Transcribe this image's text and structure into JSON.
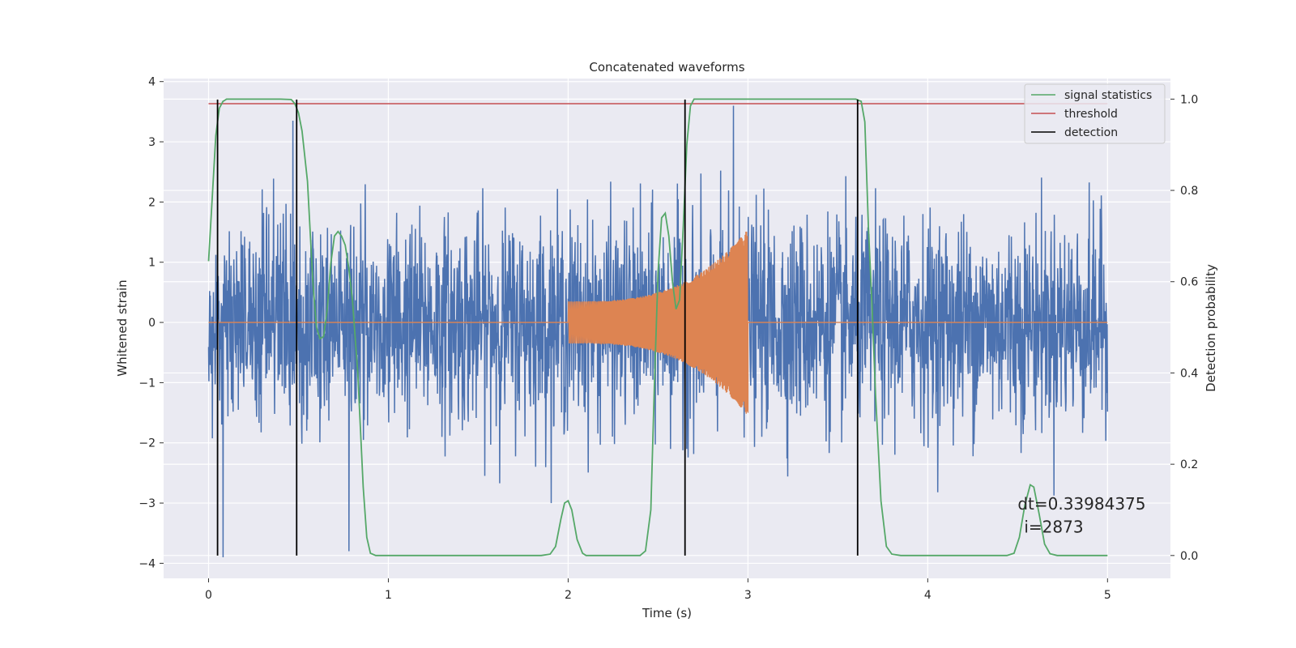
{
  "chart_data": {
    "type": "line",
    "title": "Concatenated waveforms",
    "xlabel": "Time (s)",
    "ylabel": "Whitened strain",
    "y2label": "Detection probability",
    "xlim": [
      -0.25,
      5.35
    ],
    "ylim": [
      -4.25,
      4.05
    ],
    "y2lim": [
      -0.05,
      1.045
    ],
    "xticks": [
      0,
      1,
      2,
      3,
      4,
      5
    ],
    "xtick_labels": [
      "0",
      "1",
      "2",
      "3",
      "4",
      "5"
    ],
    "yticks": [
      -4,
      -3,
      -2,
      -1,
      0,
      1,
      2,
      3,
      4
    ],
    "ytick_labels": [
      "−4",
      "−3",
      "−2",
      "−1",
      "0",
      "1",
      "2",
      "3",
      "4"
    ],
    "y2ticks": [
      0.0,
      0.2,
      0.4,
      0.6,
      0.8,
      1.0
    ],
    "y2tick_labels": [
      "0.0",
      "0.2",
      "0.4",
      "0.6",
      "0.8",
      "1.0"
    ],
    "grid": true,
    "legend_position": "top-right",
    "legend": [
      {
        "label": "signal statistics",
        "color": "#55a868"
      },
      {
        "label": "threshold",
        "color": "#c44e52"
      },
      {
        "label": "detection",
        "color": "#000000"
      }
    ],
    "colors": {
      "noise": "#4c72b0",
      "injection": "#dd8452",
      "statistic": "#55a868",
      "threshold": "#c44e52",
      "detection": "#000000",
      "axes_bg": "#eaeaf2",
      "grid": "#ffffff"
    },
    "noise_series": {
      "name": "whitened strain",
      "t_start": 0.0,
      "t_end": 5.0,
      "typical_range": [
        -2.4,
        2.5
      ],
      "peaks": [
        {
          "t": 0.47,
          "y": 3.35
        },
        {
          "t": 2.92,
          "y": 3.6
        },
        {
          "t": 0.08,
          "y": -3.9
        },
        {
          "t": 0.78,
          "y": -3.8
        }
      ]
    },
    "injection_series": {
      "name": "injected chirp",
      "t_start": 2.0,
      "t_end": 3.0,
      "start_amplitude": 0.35,
      "end_amplitude_top": 1.55,
      "end_amplitude_bottom": -1.5
    },
    "statistic_series": {
      "name": "signal statistics",
      "points": [
        [
          0.0,
          0.645
        ],
        [
          0.02,
          0.78
        ],
        [
          0.04,
          0.92
        ],
        [
          0.06,
          0.98
        ],
        [
          0.08,
          0.995
        ],
        [
          0.1,
          1.0
        ],
        [
          0.4,
          1.0
        ],
        [
          0.46,
          0.999
        ],
        [
          0.48,
          0.99
        ],
        [
          0.5,
          0.97
        ],
        [
          0.52,
          0.93
        ],
        [
          0.55,
          0.82
        ],
        [
          0.58,
          0.6
        ],
        [
          0.6,
          0.5
        ],
        [
          0.62,
          0.475
        ],
        [
          0.64,
          0.48
        ],
        [
          0.66,
          0.54
        ],
        [
          0.68,
          0.64
        ],
        [
          0.7,
          0.7
        ],
        [
          0.72,
          0.71
        ],
        [
          0.74,
          0.7
        ],
        [
          0.76,
          0.68
        ],
        [
          0.78,
          0.63
        ],
        [
          0.8,
          0.56
        ],
        [
          0.83,
          0.4
        ],
        [
          0.86,
          0.15
        ],
        [
          0.88,
          0.04
        ],
        [
          0.9,
          0.005
        ],
        [
          0.93,
          0.0
        ],
        [
          1.85,
          0.0
        ],
        [
          1.9,
          0.003
        ],
        [
          1.93,
          0.02
        ],
        [
          1.96,
          0.08
        ],
        [
          1.98,
          0.115
        ],
        [
          2.0,
          0.12
        ],
        [
          2.02,
          0.1
        ],
        [
          2.05,
          0.035
        ],
        [
          2.08,
          0.005
        ],
        [
          2.1,
          0.0
        ],
        [
          2.4,
          0.0
        ],
        [
          2.43,
          0.01
        ],
        [
          2.46,
          0.1
        ],
        [
          2.48,
          0.38
        ],
        [
          2.5,
          0.62
        ],
        [
          2.52,
          0.74
        ],
        [
          2.54,
          0.75
        ],
        [
          2.56,
          0.7
        ],
        [
          2.58,
          0.6
        ],
        [
          2.6,
          0.54
        ],
        [
          2.62,
          0.56
        ],
        [
          2.64,
          0.72
        ],
        [
          2.66,
          0.9
        ],
        [
          2.68,
          0.985
        ],
        [
          2.7,
          1.0
        ],
        [
          3.6,
          1.0
        ],
        [
          3.63,
          0.995
        ],
        [
          3.65,
          0.95
        ],
        [
          3.67,
          0.72
        ],
        [
          3.69,
          0.55
        ],
        [
          3.71,
          0.35
        ],
        [
          3.74,
          0.12
        ],
        [
          3.77,
          0.02
        ],
        [
          3.8,
          0.003
        ],
        [
          3.85,
          0.0
        ],
        [
          4.44,
          0.0
        ],
        [
          4.48,
          0.005
        ],
        [
          4.51,
          0.04
        ],
        [
          4.54,
          0.11
        ],
        [
          4.57,
          0.155
        ],
        [
          4.59,
          0.15
        ],
        [
          4.62,
          0.09
        ],
        [
          4.65,
          0.025
        ],
        [
          4.68,
          0.004
        ],
        [
          4.72,
          0.0
        ],
        [
          5.0,
          0.0
        ]
      ]
    },
    "threshold_series": {
      "name": "threshold",
      "t_start": 0.0,
      "t_end": 5.0,
      "value": 0.99
    },
    "detections": [
      0.05,
      0.49,
      2.65,
      3.61
    ],
    "detection_range": [
      0.0,
      0.999
    ],
    "annotation": {
      "line1": "dt=0.33984375",
      "line2": "i=2873",
      "x": 4.5,
      "y1": -3.0,
      "y2": -3.38
    }
  }
}
